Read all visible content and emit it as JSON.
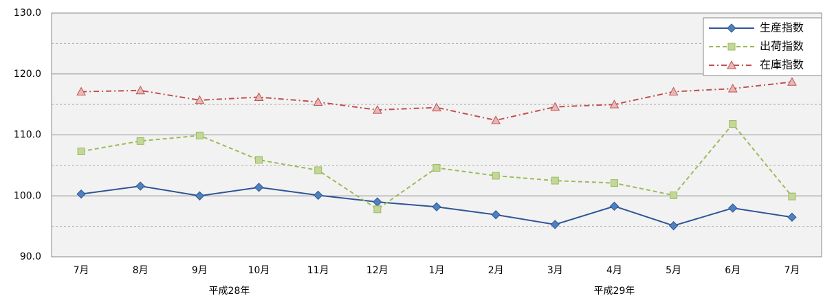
{
  "chart_data": {
    "type": "line",
    "categories": [
      "7月",
      "8月",
      "9月",
      "10月",
      "11月",
      "12月",
      "1月",
      "2月",
      "3月",
      "4月",
      "5月",
      "6月",
      "7月"
    ],
    "category_groups": [
      {
        "label": "平成28年",
        "count": 6
      },
      {
        "label": "平成29年",
        "count": 7
      }
    ],
    "series": [
      {
        "name": "生産指数",
        "color": "#2e5597",
        "marker_fill": "#4f81bd",
        "marker": "diamond",
        "dash": "solid",
        "values": [
          100.3,
          101.6,
          100.0,
          101.4,
          100.1,
          99.0,
          98.2,
          96.9,
          95.3,
          98.3,
          95.1,
          98.0,
          96.5
        ]
      },
      {
        "name": "出荷指数",
        "color": "#9bbb59",
        "marker_fill": "#c3d69b",
        "marker": "square",
        "dash": "dashed",
        "values": [
          107.3,
          109.0,
          109.9,
          105.9,
          104.2,
          97.8,
          104.6,
          103.3,
          102.5,
          102.1,
          100.1,
          111.8,
          99.9
        ]
      },
      {
        "name": "在庫指数",
        "color": "#c0504d",
        "marker_fill": "#e6b9b8",
        "marker": "triangle",
        "dash": "dashdot",
        "values": [
          117.1,
          117.3,
          115.7,
          116.2,
          115.4,
          114.1,
          114.5,
          112.4,
          114.6,
          115.0,
          117.1,
          117.6,
          118.7
        ]
      }
    ],
    "ylim": [
      90,
      130
    ],
    "yticks": [
      {
        "value": 90,
        "label": "90.0"
      },
      {
        "value": 100,
        "label": "100.0"
      },
      {
        "value": 110,
        "label": "110.0"
      },
      {
        "value": 120,
        "label": "120.0"
      },
      {
        "value": 130,
        "label": "130.0"
      }
    ],
    "minor_yticks": [
      95,
      105,
      115,
      125
    ],
    "grid": true,
    "legend": "top-right"
  }
}
